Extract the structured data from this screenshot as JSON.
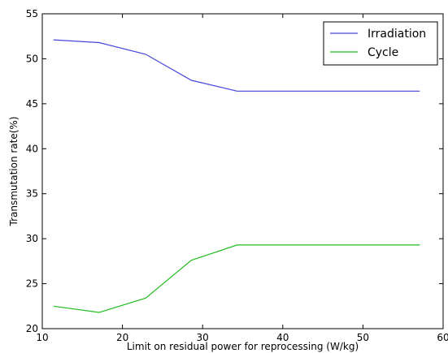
{
  "chart_data": {
    "type": "line",
    "title": "",
    "xlabel": "Limit on residual power for reprocessing (W/kg)",
    "ylabel": "Transmutation rate(%)",
    "xlim": [
      10,
      60
    ],
    "ylim": [
      20,
      55
    ],
    "xticks": [
      "10",
      "20",
      "30",
      "40",
      "50",
      "60"
    ],
    "yticks": [
      "20",
      "25",
      "30",
      "35",
      "40",
      "45",
      "50",
      "55"
    ],
    "grid": false,
    "legend_position": "top-right",
    "series": [
      {
        "name": "Irradiation",
        "color": "#4444dd",
        "x": [
          11.4,
          17.1,
          22.9,
          28.6,
          34.3,
          57.1
        ],
        "y": [
          52.1,
          51.8,
          50.5,
          47.6,
          46.4,
          46.4
        ]
      },
      {
        "name": "Cycle",
        "color": "#22bb22",
        "x": [
          11.4,
          17.1,
          22.9,
          28.6,
          34.3,
          57.1
        ],
        "y": [
          22.5,
          21.8,
          23.4,
          27.6,
          29.3,
          29.3
        ]
      }
    ]
  }
}
